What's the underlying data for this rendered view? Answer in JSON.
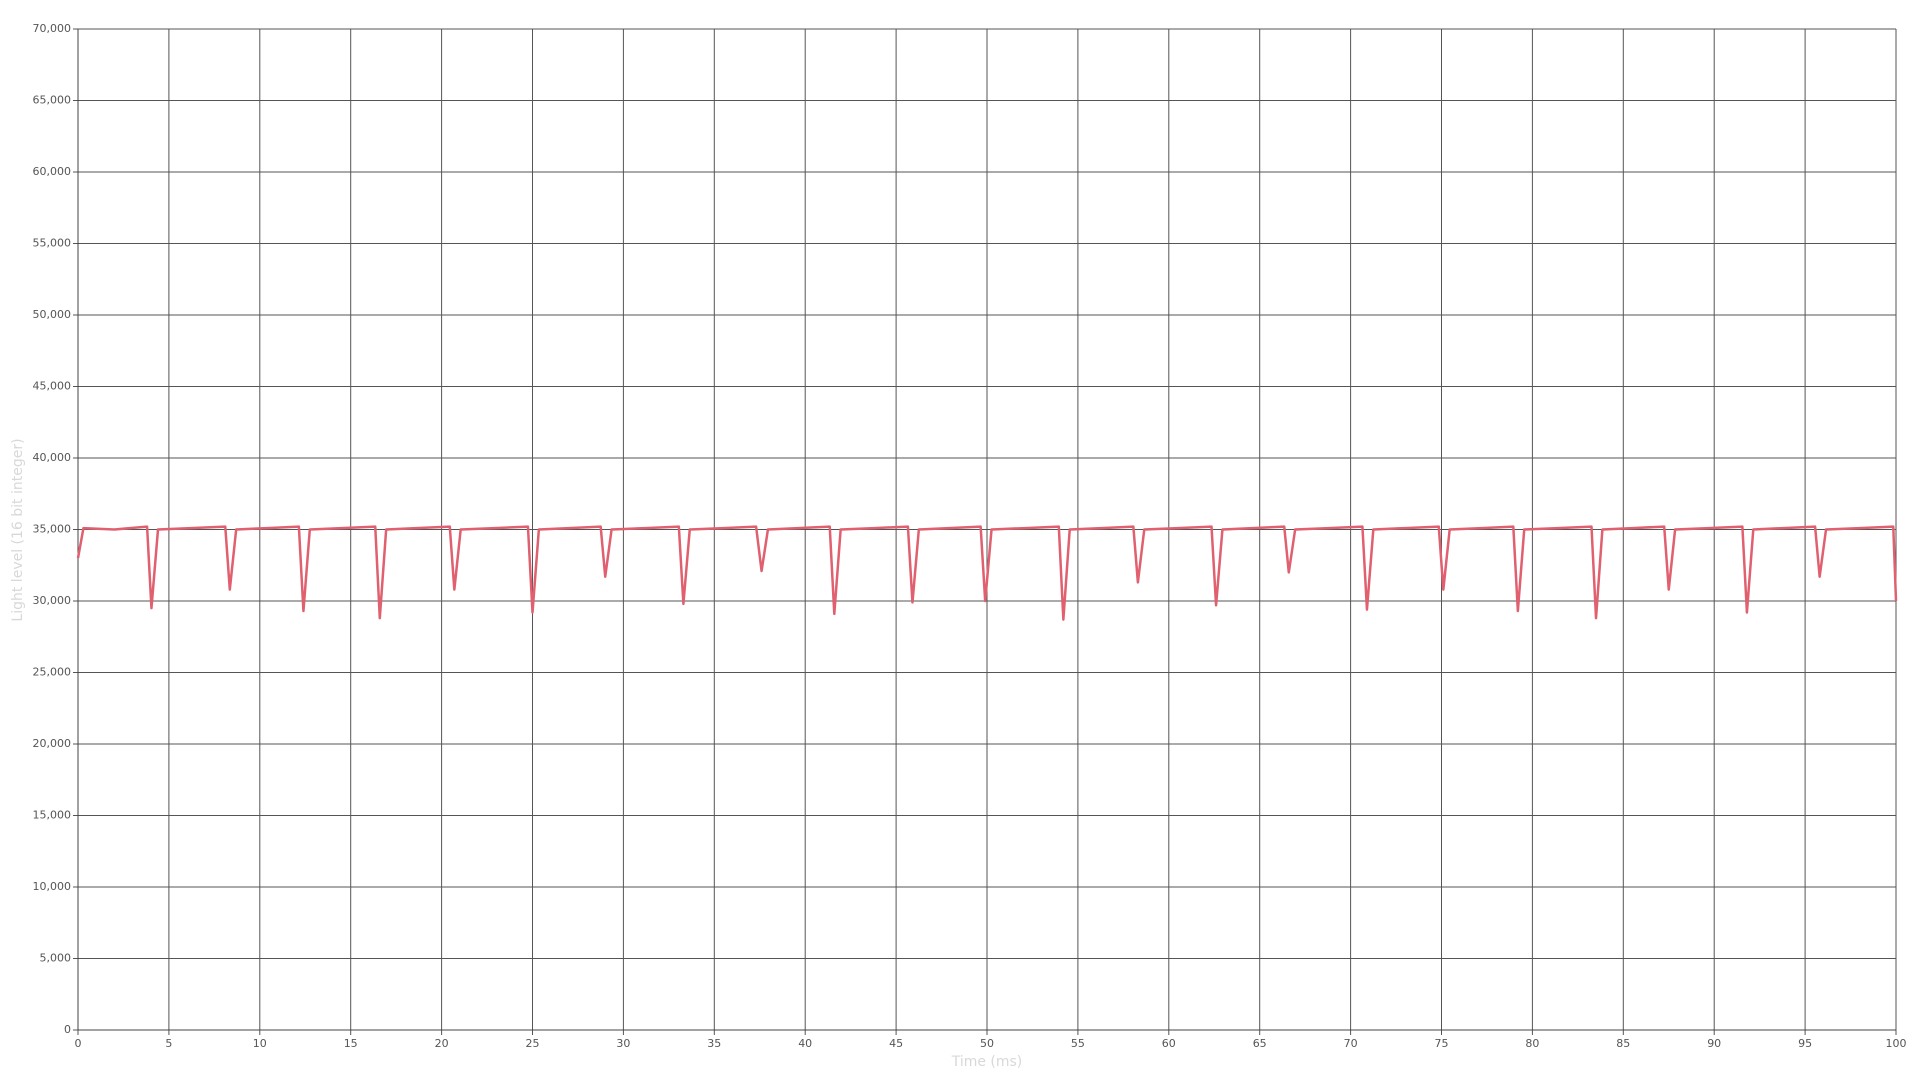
{
  "chart_data": {
    "type": "line",
    "x_label": "Time (ms)",
    "y_label": "Light level (16 bit integer)",
    "x": [
      0,
      0.3,
      2,
      3.8,
      4.04,
      4.4,
      6.2,
      8.1,
      8.35,
      8.7,
      10.4,
      12.15,
      12.4,
      12.75,
      14.5,
      16.35,
      16.6,
      16.95,
      18.6,
      20.45,
      20.7,
      21.05,
      22.9,
      24.75,
      25.0,
      25.35,
      27.0,
      28.75,
      29.0,
      29.35,
      31.2,
      33.05,
      33.3,
      33.65,
      35.5,
      37.3,
      37.6,
      37.95,
      39.6,
      41.35,
      41.6,
      41.95,
      43.8,
      45.65,
      45.9,
      46.25,
      47.9,
      49.65,
      49.9,
      50.25,
      52.1,
      53.95,
      54.2,
      54.55,
      56.3,
      58.05,
      58.3,
      58.65,
      60.5,
      62.35,
      62.6,
      62.95,
      64.6,
      66.35,
      66.6,
      66.95,
      68.8,
      70.65,
      70.9,
      71.25,
      73.0,
      74.85,
      75.1,
      75.45,
      77.2,
      78.95,
      79.2,
      79.55,
      81.4,
      83.25,
      83.5,
      83.85,
      85.5,
      87.25,
      87.5,
      87.85,
      89.7,
      91.55,
      91.8,
      92.15,
      93.8,
      95.55,
      95.8,
      96.15,
      98.0,
      99.85,
      100
    ],
    "series": [
      {
        "color": "#e0606f",
        "values": [
          33000,
          35100,
          35000,
          35200,
          29500,
          35000,
          35100,
          35200,
          30800,
          35000,
          35100,
          35200,
          29300,
          35000,
          35100,
          35200,
          28800,
          35000,
          35100,
          35200,
          30800,
          35000,
          35100,
          35200,
          29200,
          35000,
          35100,
          35200,
          31700,
          35000,
          35100,
          35200,
          29800,
          35000,
          35100,
          35200,
          32100,
          35000,
          35100,
          35200,
          29100,
          35000,
          35100,
          35200,
          29900,
          35000,
          35100,
          35200,
          30000,
          35000,
          35100,
          35200,
          28700,
          35000,
          35100,
          35200,
          31300,
          35000,
          35100,
          35200,
          29700,
          35000,
          35100,
          35200,
          32000,
          35000,
          35100,
          35200,
          29400,
          35000,
          35100,
          35200,
          30800,
          35000,
          35100,
          35200,
          29300,
          35000,
          35100,
          35200,
          28800,
          35000,
          35100,
          35200,
          30800,
          35000,
          35100,
          35200,
          29200,
          35000,
          35100,
          35200,
          31700,
          35000,
          35100,
          35200,
          30000
        ]
      }
    ],
    "xlim": [
      0,
      100
    ],
    "xticks": [
      0,
      5,
      10,
      15,
      20,
      25,
      30,
      35,
      40,
      45,
      50,
      55,
      60,
      65,
      70,
      75,
      80,
      85,
      90,
      95,
      100
    ],
    "ylim": [
      0,
      70000
    ],
    "yticks": [
      0,
      {
        "value": 5000,
        "label": "5,000"
      },
      {
        "value": 10000,
        "label": "10,000"
      },
      {
        "value": 15000,
        "label": "15,000"
      },
      {
        "value": 20000,
        "label": "20,000"
      },
      {
        "value": 25000,
        "label": "25,000"
      },
      {
        "value": 30000,
        "label": "30,000"
      },
      {
        "value": 35000,
        "label": "35,000"
      },
      {
        "value": 40000,
        "label": "40,000"
      },
      {
        "value": 45000,
        "label": "45,000"
      },
      {
        "value": 50000,
        "label": "50,000"
      },
      {
        "value": 55000,
        "label": "55,000"
      },
      {
        "value": 60000,
        "label": "60,000"
      },
      {
        "value": 65000,
        "label": "65,000"
      },
      {
        "value": 70000,
        "label": "70,000"
      }
    ],
    "grid": true
  }
}
